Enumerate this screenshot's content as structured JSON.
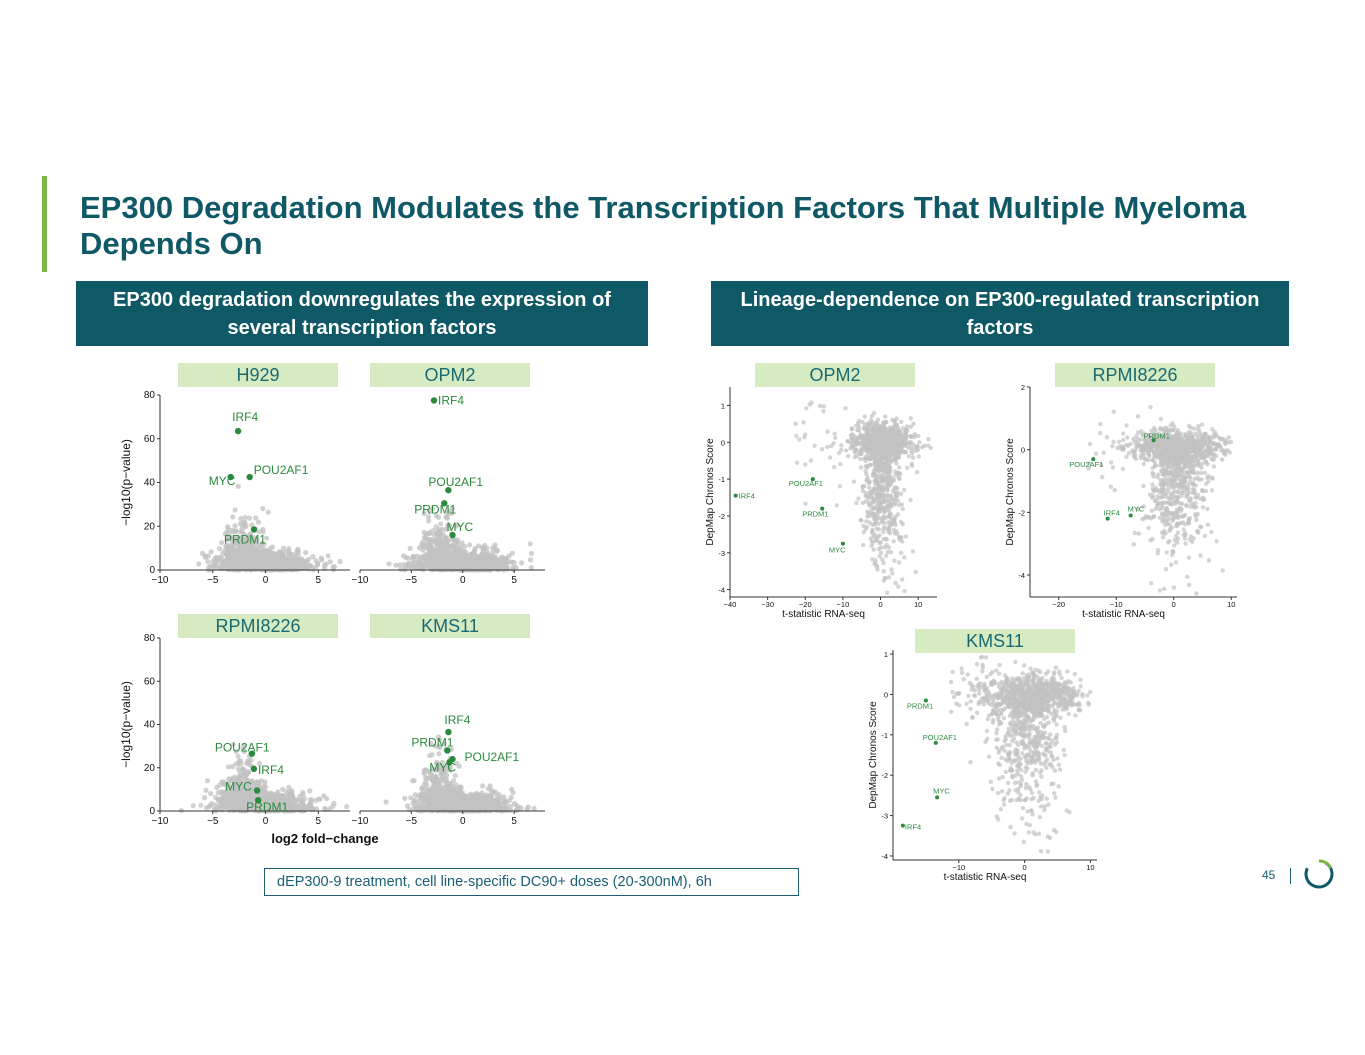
{
  "title": "EP300 Degradation Modulates the Transcription Factors That Multiple Myeloma Depends On",
  "left_header": "EP300 degradation downregulates the expression of several transcription factors",
  "right_header": "Lineage-dependence on EP300-regulated transcription factors",
  "treatment_note": "dEP300-9 treatment, cell line-specific DC90+ doses (20-300nM), 6h",
  "page_number": "45",
  "colors": {
    "brand": "#0f5866",
    "accent": "#7ab648",
    "label_bg": "#d6ebc2",
    "highlight": "#2b8a3e",
    "cloud": "#c2c2c2"
  },
  "chart_data": [
    {
      "id": "volcano-h929",
      "type": "scatter",
      "title": "H929",
      "xlabel": "log2 fold−change",
      "ylabel": "−log10(p−value)",
      "xlim": [
        -10,
        8
      ],
      "ylim": [
        0,
        80
      ],
      "xticks": [
        -10,
        -5,
        0,
        5
      ],
      "yticks": [
        0,
        20,
        40,
        60,
        80
      ],
      "highlighted": [
        {
          "label": "IRF4",
          "x": -2.6,
          "y": 63.5
        },
        {
          "label": "MYC",
          "x": -3.3,
          "y": 42.5
        },
        {
          "label": "POU2AF1",
          "x": -1.5,
          "y": 42.5
        },
        {
          "label": "PRDM1",
          "x": -1.1,
          "y": 18.5
        }
      ]
    },
    {
      "id": "volcano-opm2",
      "type": "scatter",
      "title": "OPM2",
      "xlabel": "log2 fold−change",
      "ylabel": "−log10(p−value)",
      "xlim": [
        -10,
        8
      ],
      "ylim": [
        0,
        80
      ],
      "xticks": [
        -10,
        -5,
        0,
        5
      ],
      "yticks": [
        0,
        20,
        40,
        60,
        80
      ],
      "highlighted": [
        {
          "label": "IRF4",
          "x": -2.8,
          "y": 77.5
        },
        {
          "label": "POU2AF1",
          "x": -1.4,
          "y": 36.5
        },
        {
          "label": "PRDM1",
          "x": -1.8,
          "y": 30.5
        },
        {
          "label": "MYC",
          "x": -1.0,
          "y": 16.0
        }
      ]
    },
    {
      "id": "volcano-rpmi8226",
      "type": "scatter",
      "title": "RPMI8226",
      "xlabel": "log2 fold−change",
      "ylabel": "−log10(p−value)",
      "xlim": [
        -10,
        8
      ],
      "ylim": [
        0,
        80
      ],
      "xticks": [
        -10,
        -5,
        0,
        5
      ],
      "yticks": [
        0,
        20,
        40,
        60,
        80
      ],
      "highlighted": [
        {
          "label": "POU2AF1",
          "x": -1.3,
          "y": 26.5
        },
        {
          "label": "IRF4",
          "x": -1.1,
          "y": 19.5
        },
        {
          "label": "MYC",
          "x": -0.8,
          "y": 9.5
        },
        {
          "label": "PRDM1",
          "x": -0.7,
          "y": 5.0
        }
      ]
    },
    {
      "id": "volcano-kms11",
      "type": "scatter",
      "title": "KMS11",
      "xlabel": "log2 fold−change",
      "ylabel": "−log10(p−value)",
      "xlim": [
        -10,
        8
      ],
      "ylim": [
        0,
        80
      ],
      "xticks": [
        -10,
        -5,
        0,
        5
      ],
      "yticks": [
        0,
        20,
        40,
        60,
        80
      ],
      "highlighted": [
        {
          "label": "IRF4",
          "x": -1.4,
          "y": 36.5
        },
        {
          "label": "PRDM1",
          "x": -1.5,
          "y": 28.0
        },
        {
          "label": "POU2AF1",
          "x": -1.0,
          "y": 24.0
        },
        {
          "label": "MYC",
          "x": -1.3,
          "y": 22.5
        }
      ]
    },
    {
      "id": "dep-opm2",
      "type": "scatter",
      "title": "OPM2",
      "xlabel": "t-statistic RNA-seq",
      "ylabel": "DepMap Chronos Score",
      "xlim": [
        -40,
        15
      ],
      "ylim": [
        -4.2,
        1.5
      ],
      "xticks": [
        -40,
        -30,
        -20,
        -10,
        0,
        10
      ],
      "yticks": [
        -4,
        -3,
        -2,
        -1,
        0,
        1
      ],
      "highlighted": [
        {
          "label": "IRF4",
          "x": -38.5,
          "y": -1.45
        },
        {
          "label": "POU2AF1",
          "x": -18,
          "y": -1.0
        },
        {
          "label": "PRDM1",
          "x": -15.5,
          "y": -1.8
        },
        {
          "label": "MYC",
          "x": -10,
          "y": -2.75
        }
      ]
    },
    {
      "id": "dep-rpmi8226",
      "type": "scatter",
      "title": "RPMI8226",
      "xlabel": "t-statistic RNA-seq",
      "ylabel": "DepMap Chronos Score",
      "xlim": [
        -25,
        11
      ],
      "ylim": [
        -4.7,
        2.0
      ],
      "xticks": [
        -20,
        -10,
        0,
        10
      ],
      "yticks": [
        -4,
        -2,
        0,
        2
      ],
      "highlighted": [
        {
          "label": "PRDM1",
          "x": -3.5,
          "y": 0.3
        },
        {
          "label": "POU2AF1",
          "x": -14,
          "y": -0.3
        },
        {
          "label": "IRF4",
          "x": -11.5,
          "y": -2.2
        },
        {
          "label": "MYC",
          "x": -7.5,
          "y": -2.1
        }
      ]
    },
    {
      "id": "dep-kms11",
      "type": "scatter",
      "title": "KMS11",
      "xlabel": "t-statistic RNA-seq",
      "ylabel": "DepMap Chronos Score",
      "xlim": [
        -20,
        11
      ],
      "ylim": [
        -4.1,
        1.1
      ],
      "xticks": [
        -10,
        0,
        10
      ],
      "yticks": [
        -4,
        -3,
        -2,
        -1,
        0,
        1
      ],
      "highlighted": [
        {
          "label": "PRDM1",
          "x": -15,
          "y": -0.15
        },
        {
          "label": "POU2AF1",
          "x": -13.5,
          "y": -1.2
        },
        {
          "label": "MYC",
          "x": -13.3,
          "y": -2.55
        },
        {
          "label": "IRF4",
          "x": -18.5,
          "y": -3.25
        }
      ]
    }
  ]
}
